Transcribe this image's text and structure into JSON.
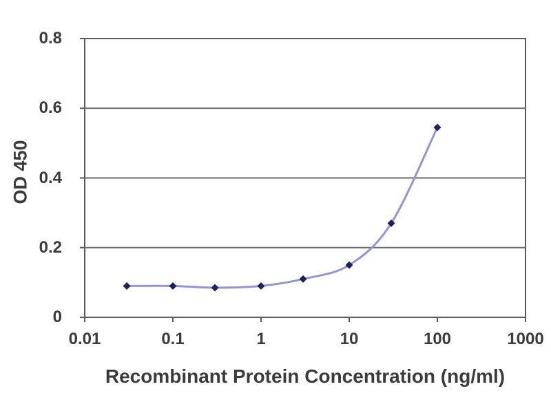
{
  "chart_data": {
    "type": "line",
    "title": "",
    "xlabel": "Recombinant Protein Concentration (ng/ml)",
    "ylabel": "OD 450",
    "x_scale": "log",
    "xlim": [
      0.01,
      1000
    ],
    "ylim": [
      0,
      0.8
    ],
    "x_ticks": {
      "values": [
        0.01,
        0.1,
        1,
        10,
        100,
        1000
      ],
      "labels": [
        "0.01",
        "0.1",
        "1",
        "10",
        "100",
        "1000"
      ]
    },
    "y_ticks": {
      "values": [
        0,
        0.2,
        0.4,
        0.6,
        0.8
      ],
      "labels": [
        "0",
        "0.2",
        "0.4",
        "0.6",
        "0.8"
      ]
    },
    "grid": "horizontal-major",
    "legend": "none",
    "series": [
      {
        "name": "OD 450",
        "x": [
          0.03,
          0.1,
          0.3,
          1,
          3,
          10,
          30,
          100
        ],
        "y": [
          0.09,
          0.09,
          0.085,
          0.09,
          0.11,
          0.15,
          0.27,
          0.545
        ],
        "smooth": true,
        "marker": "diamond"
      }
    ]
  },
  "colors": {
    "background": "#ffffff",
    "plot_fill": "#ffffff",
    "plot_border": "#5a5a5a",
    "gridline": "#6a6a6a",
    "tick": "#5a5a5a",
    "line": "#9494d2",
    "marker": "#20205e",
    "text": "#3b3b3b"
  }
}
